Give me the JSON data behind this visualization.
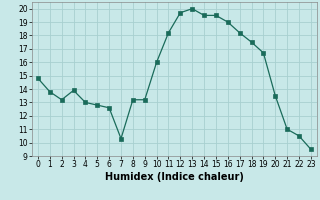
{
  "x": [
    0,
    1,
    2,
    3,
    4,
    5,
    6,
    7,
    8,
    9,
    10,
    11,
    12,
    13,
    14,
    15,
    16,
    17,
    18,
    19,
    20,
    21,
    22,
    23
  ],
  "y": [
    14.8,
    13.8,
    13.2,
    13.9,
    13.0,
    12.8,
    12.6,
    10.3,
    13.2,
    13.2,
    16.0,
    18.2,
    19.7,
    20.0,
    19.5,
    19.5,
    19.0,
    18.2,
    17.5,
    16.7,
    13.5,
    11.0,
    10.5,
    9.5
  ],
  "line_color": "#1a6b5a",
  "marker": "s",
  "marker_size": 2.5,
  "bg_color": "#c8e8e8",
  "grid_color": "#a8d0d0",
  "xlabel": "Humidex (Indice chaleur)",
  "xlim": [
    -0.5,
    23.5
  ],
  "ylim": [
    9,
    20.5
  ],
  "yticks": [
    9,
    10,
    11,
    12,
    13,
    14,
    15,
    16,
    17,
    18,
    19,
    20
  ],
  "xticks": [
    0,
    1,
    2,
    3,
    4,
    5,
    6,
    7,
    8,
    9,
    10,
    11,
    12,
    13,
    14,
    15,
    16,
    17,
    18,
    19,
    20,
    21,
    22,
    23
  ],
  "xlabel_fontsize": 7,
  "tick_fontsize": 5.5
}
